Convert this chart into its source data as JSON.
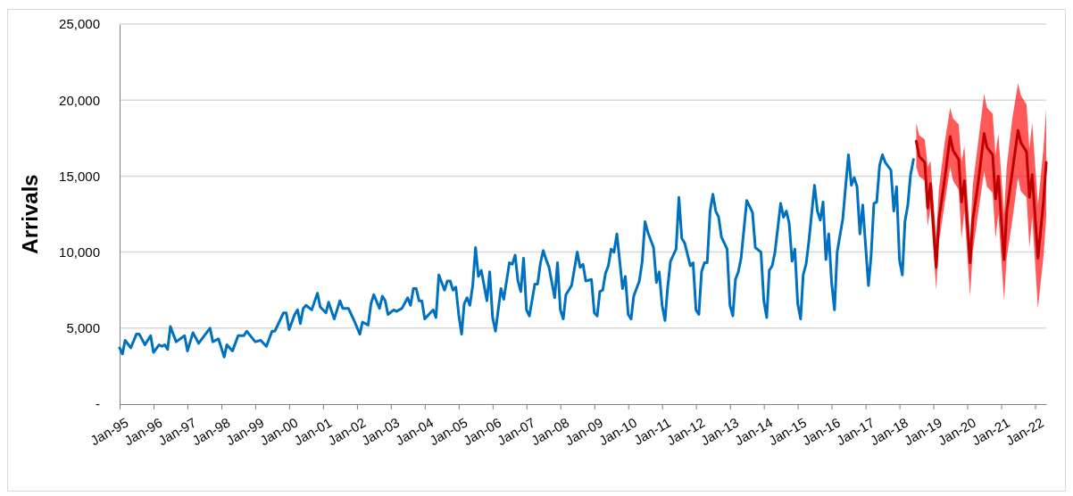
{
  "chart_data": {
    "type": "line",
    "ylabel": "Arrivals",
    "xlim": [
      "1995-01",
      "2022-05"
    ],
    "xticks": [
      {
        "value": "1995-01",
        "label": "Jan-95"
      },
      {
        "value": "1996-01",
        "label": "Jan-96"
      },
      {
        "value": "1997-01",
        "label": "Jan-97"
      },
      {
        "value": "1998-01",
        "label": "Jan-98"
      },
      {
        "value": "1999-01",
        "label": "Jan-99"
      },
      {
        "value": "2000-01",
        "label": "Jan-00"
      },
      {
        "value": "2001-01",
        "label": "Jan-01"
      },
      {
        "value": "2002-01",
        "label": "Jan-02"
      },
      {
        "value": "2003-01",
        "label": "Jan-03"
      },
      {
        "value": "2004-01",
        "label": "Jan-04"
      },
      {
        "value": "2005-01",
        "label": "Jan-05"
      },
      {
        "value": "2006-01",
        "label": "Jan-06"
      },
      {
        "value": "2007-01",
        "label": "Jan-07"
      },
      {
        "value": "2008-01",
        "label": "Jan-08"
      },
      {
        "value": "2009-01",
        "label": "Jan-09"
      },
      {
        "value": "2010-01",
        "label": "Jan-10"
      },
      {
        "value": "2011-01",
        "label": "Jan-11"
      },
      {
        "value": "2012-01",
        "label": "Jan-12"
      },
      {
        "value": "2013-01",
        "label": "Jan-13"
      },
      {
        "value": "2014-01",
        "label": "Jan-14"
      },
      {
        "value": "2015-01",
        "label": "Jan-15"
      },
      {
        "value": "2016-01",
        "label": "Jan-16"
      },
      {
        "value": "2017-01",
        "label": "Jan-17"
      },
      {
        "value": "2018-01",
        "label": "Jan-18"
      },
      {
        "value": "2019-01",
        "label": "Jan-19"
      },
      {
        "value": "2020-01",
        "label": "Jan-20"
      },
      {
        "value": "2021-01",
        "label": "Jan-21"
      },
      {
        "value": "2022-01",
        "label": "Jan-22"
      }
    ],
    "ylim": [
      0,
      25000
    ],
    "yticks": [
      {
        "value": 0,
        "label": "-"
      },
      {
        "value": 5000,
        "label": "5,000"
      },
      {
        "value": 10000,
        "label": "10,000"
      },
      {
        "value": 15000,
        "label": "15,000"
      },
      {
        "value": 20000,
        "label": "20,000"
      },
      {
        "value": 25000,
        "label": "25,000"
      }
    ],
    "grid": "y",
    "marker": "none",
    "line_style": "solid",
    "series": [
      {
        "color": "#0070c0",
        "x": [
          "1995-01",
          "1995-02",
          "1995-03",
          "1995-05",
          "1995-07",
          "1995-08",
          "1995-10",
          "1995-12",
          "1996-01",
          "1996-03",
          "1996-04",
          "1996-05",
          "1996-06",
          "1996-07",
          "1996-09",
          "1996-12",
          "1997-01",
          "1997-03",
          "1997-05",
          "1997-07",
          "1997-09",
          "1997-10",
          "1997-12",
          "1998-02",
          "1998-03",
          "1998-05",
          "1998-07",
          "1998-09",
          "1998-10",
          "1999-01",
          "1999-03",
          "1999-05",
          "1999-07",
          "1999-08",
          "1999-11",
          "1999-12",
          "2000-01",
          "2000-03",
          "2000-04",
          "2000-05",
          "2000-06",
          "2000-07",
          "2000-09",
          "2000-11",
          "2000-12",
          "2001-02",
          "2001-03",
          "2001-05",
          "2001-07",
          "2001-08",
          "2001-10",
          "2001-12",
          "2002-02",
          "2002-03",
          "2002-05",
          "2002-06",
          "2002-07",
          "2002-09",
          "2002-10",
          "2002-11",
          "2002-12",
          "2003-02",
          "2003-03",
          "2003-05",
          "2003-07",
          "2003-08",
          "2003-09",
          "2003-10",
          "2003-11",
          "2003-12",
          "2004-01",
          "2004-04",
          "2004-05",
          "2004-06",
          "2004-08",
          "2004-09",
          "2004-10",
          "2004-11",
          "2004-12",
          "2005-01",
          "2005-02",
          "2005-03",
          "2005-04",
          "2005-05",
          "2005-06",
          "2005-07",
          "2005-08",
          "2005-09",
          "2005-11",
          "2005-12",
          "2006-01",
          "2006-02",
          "2006-04",
          "2006-05",
          "2006-07",
          "2006-08",
          "2006-09",
          "2006-10",
          "2006-11",
          "2006-12",
          "2007-01",
          "2007-02",
          "2007-04",
          "2007-05",
          "2007-06",
          "2007-07",
          "2007-08",
          "2007-09",
          "2007-11",
          "2007-12",
          "2008-01",
          "2008-02",
          "2008-03",
          "2008-04",
          "2008-05",
          "2008-07",
          "2008-08",
          "2008-09",
          "2008-10",
          "2008-12",
          "2009-01",
          "2009-02",
          "2009-03",
          "2009-04",
          "2009-05",
          "2009-06",
          "2009-07",
          "2009-08",
          "2009-09",
          "2009-11",
          "2009-12",
          "2010-01",
          "2010-02",
          "2010-03",
          "2010-05",
          "2010-06",
          "2010-07",
          "2010-08",
          "2010-10",
          "2010-11",
          "2010-12",
          "2011-01",
          "2011-02",
          "2011-03",
          "2011-04",
          "2011-06",
          "2011-07",
          "2011-08",
          "2011-09",
          "2011-11",
          "2011-12",
          "2012-01",
          "2012-02",
          "2012-03",
          "2012-04",
          "2012-05",
          "2012-06",
          "2012-07",
          "2012-08",
          "2012-09",
          "2012-10",
          "2012-12",
          "2013-01",
          "2013-02",
          "2013-03",
          "2013-04",
          "2013-05",
          "2013-07",
          "2013-08",
          "2013-09",
          "2013-10",
          "2013-12",
          "2014-01",
          "2014-02",
          "2014-03",
          "2014-04",
          "2014-05",
          "2014-07",
          "2014-08",
          "2014-09",
          "2014-10",
          "2014-11",
          "2014-12",
          "2015-01",
          "2015-02",
          "2015-03",
          "2015-04",
          "2015-05",
          "2015-07",
          "2015-08",
          "2015-09",
          "2015-10",
          "2015-11",
          "2015-12",
          "2016-01",
          "2016-02",
          "2016-03",
          "2016-05",
          "2016-06",
          "2016-07",
          "2016-08",
          "2016-09",
          "2016-10",
          "2016-11",
          "2016-12",
          "2017-02",
          "2017-03",
          "2017-04",
          "2017-05",
          "2017-06",
          "2017-07",
          "2017-08",
          "2017-10",
          "2017-11",
          "2017-12",
          "2018-01",
          "2018-02",
          "2018-03",
          "2018-04",
          "2018-05",
          "2018-06"
        ],
        "values": [
          3700,
          3300,
          4200,
          3700,
          4600,
          4600,
          3900,
          4500,
          3400,
          3900,
          3800,
          3900,
          3600,
          5100,
          4100,
          4500,
          3500,
          4700,
          4000,
          4500,
          5000,
          4100,
          4300,
          3100,
          3900,
          3500,
          4500,
          4500,
          4800,
          4100,
          4200,
          3800,
          4800,
          4800,
          6000,
          6000,
          4900,
          5900,
          6200,
          5300,
          6300,
          6500,
          6200,
          7300,
          6400,
          6000,
          6700,
          5600,
          6800,
          6300,
          6300,
          5500,
          4600,
          5400,
          5200,
          6600,
          7200,
          6300,
          7100,
          6800,
          5900,
          6200,
          6100,
          6300,
          7000,
          6500,
          7600,
          7600,
          6800,
          6800,
          5600,
          6200,
          5700,
          8500,
          7500,
          8100,
          8100,
          7500,
          7700,
          5900,
          4600,
          6600,
          7000,
          6500,
          7800,
          10300,
          8400,
          8800,
          6800,
          8700,
          5700,
          4800,
          7600,
          6900,
          9300,
          9200,
          9800,
          8100,
          7400,
          9600,
          6200,
          5800,
          7900,
          7900,
          9300,
          10100,
          9500,
          9000,
          7000,
          9300,
          6200,
          5600,
          7200,
          7500,
          7800,
          10000,
          9000,
          9200,
          8100,
          8200,
          6000,
          5800,
          7400,
          7500,
          8600,
          9100,
          10200,
          10000,
          11200,
          7600,
          8400,
          5900,
          5600,
          7100,
          8100,
          9400,
          12000,
          11300,
          10300,
          8000,
          8700,
          6500,
          5500,
          7600,
          9400,
          10200,
          13600,
          10900,
          10600,
          9100,
          9300,
          6200,
          5900,
          8700,
          9300,
          9300,
          12700,
          13800,
          12700,
          12300,
          11000,
          10200,
          6500,
          5800,
          8200,
          8700,
          9600,
          13400,
          13000,
          12600,
          10300,
          10000,
          6800,
          5700,
          8800,
          9100,
          10000,
          13200,
          12300,
          12700,
          11900,
          9400,
          10200,
          6600,
          5600,
          8500,
          9200,
          10700,
          14400,
          12700,
          12100,
          13300,
          9500,
          11200,
          8000,
          6200,
          10000,
          12200,
          14400,
          16400,
          14400,
          14900,
          14300,
          11200,
          13100,
          7800,
          9700,
          13200,
          13300,
          15700,
          16400,
          15900,
          15400,
          12700,
          14300,
          9500,
          8500,
          12000,
          13100,
          15100,
          16100
        ]
      },
      {
        "color": "#c00000",
        "x": [
          "2018-07",
          "2018-08",
          "2018-10",
          "2018-11",
          "2018-12",
          "2019-02",
          "2019-03",
          "2019-05",
          "2019-07",
          "2019-08",
          "2019-10",
          "2019-11",
          "2019-12",
          "2020-02",
          "2020-03",
          "2020-05",
          "2020-07",
          "2020-08",
          "2020-10",
          "2020-11",
          "2020-12",
          "2021-02",
          "2021-03",
          "2021-05",
          "2021-07",
          "2021-08",
          "2021-10",
          "2021-11",
          "2021-12",
          "2022-02",
          "2022-04",
          "2022-05"
        ],
        "values": [
          17300,
          16300,
          15900,
          12900,
          14500,
          9000,
          12100,
          14700,
          17600,
          16700,
          16100,
          13300,
          14700,
          9300,
          12100,
          14700,
          17800,
          16900,
          16400,
          13500,
          15000,
          9500,
          12600,
          15300,
          18000,
          17200,
          16600,
          13600,
          15100,
          9600,
          13300,
          15900
        ],
        "lower": [
          15600,
          15000,
          14700,
          11700,
          12900,
          7500,
          10600,
          13100,
          15600,
          14700,
          14100,
          10900,
          12700,
          7100,
          10000,
          12700,
          15300,
          14300,
          13900,
          10900,
          12500,
          6800,
          9600,
          12100,
          14900,
          14000,
          13600,
          10300,
          12300,
          6300,
          9700,
          12300
        ],
        "upper": [
          18500,
          17700,
          17400,
          15600,
          16000,
          10900,
          14100,
          17100,
          19500,
          18800,
          18400,
          15900,
          17000,
          10900,
          14400,
          17400,
          20400,
          19500,
          19100,
          16400,
          17800,
          12500,
          15600,
          18800,
          21100,
          20300,
          19700,
          16800,
          18500,
          13100,
          16800,
          19400
        ]
      }
    ]
  }
}
